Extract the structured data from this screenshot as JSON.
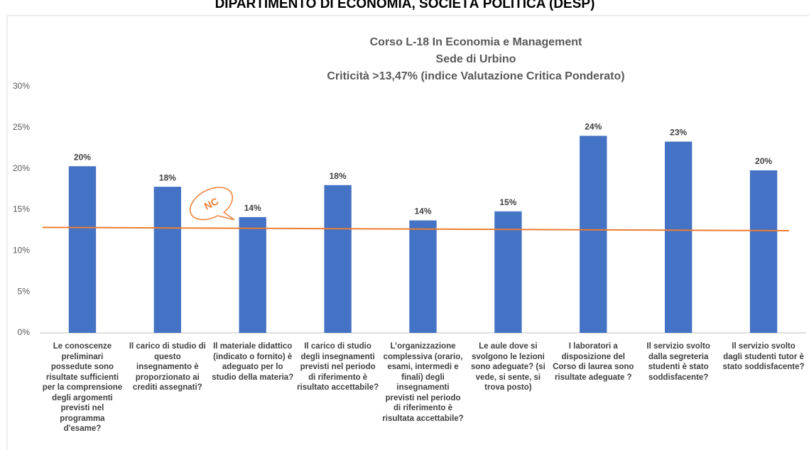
{
  "header": "DIPARTIMENTO DI ECONOMIA, SOCIETÀ POLITICA (DESP)",
  "chart_data": {
    "type": "bar",
    "title": [
      "Corso L-18 In Economia e Management",
      "Sede di Urbino",
      "Criticità >13,47% (indice Valutazione Critica Ponderato)"
    ],
    "categories": [
      "Le conoscenze preliminari possedute sono risultate sufficienti per la comprensione degli argomenti previsti nel programma d'esame?",
      "Il carico di studio di questo insegnamento è proporzionato ai crediti assegnati?",
      "Il materiale didattico (indicato o fornito) è adeguato per lo studio della materia?",
      "Il carico di studio degli insegnamenti previsti nel periodo di riferimento è risultato accettabile?",
      "L’organizzazione complessiva (orario, esami, intermedi e finali) degli insegnamenti previsti nel periodo di riferimento è risultata accettabile?",
      "Le aule dove si svolgono le lezioni sono adeguate? (si vede, si sente, si trova posto)",
      "I laboratori a disposizione del Corso di laurea sono risultate adeguate ?",
      "Il servizio svolto dalla segreteria studenti è stato soddisfacente?",
      "Il servizio svolto dagli studenti tutor è stato soddisfacente?"
    ],
    "values": [
      20.3,
      17.8,
      14.1,
      18.0,
      13.7,
      14.8,
      24.0,
      23.3,
      19.8
    ],
    "value_labels": [
      "20%",
      "18%",
      "14%",
      "18%",
      "14%",
      "15%",
      "24%",
      "23%",
      "20%"
    ],
    "color": "#4472c4",
    "ylim": [
      0,
      30
    ],
    "yticks": [
      {
        "value": 0,
        "label": "0%"
      },
      {
        "value": 5,
        "label": "5%"
      },
      {
        "value": 10,
        "label": "10%"
      },
      {
        "value": 15,
        "label": "15%"
      },
      {
        "value": 20,
        "label": "20%"
      },
      {
        "value": 25,
        "label": "25%"
      },
      {
        "value": 30,
        "label": "30%"
      }
    ],
    "grid": false,
    "reference_line": {
      "values": [
        12.85,
        12.45
      ],
      "color": "#ed7d31"
    },
    "annotation": "NC"
  }
}
